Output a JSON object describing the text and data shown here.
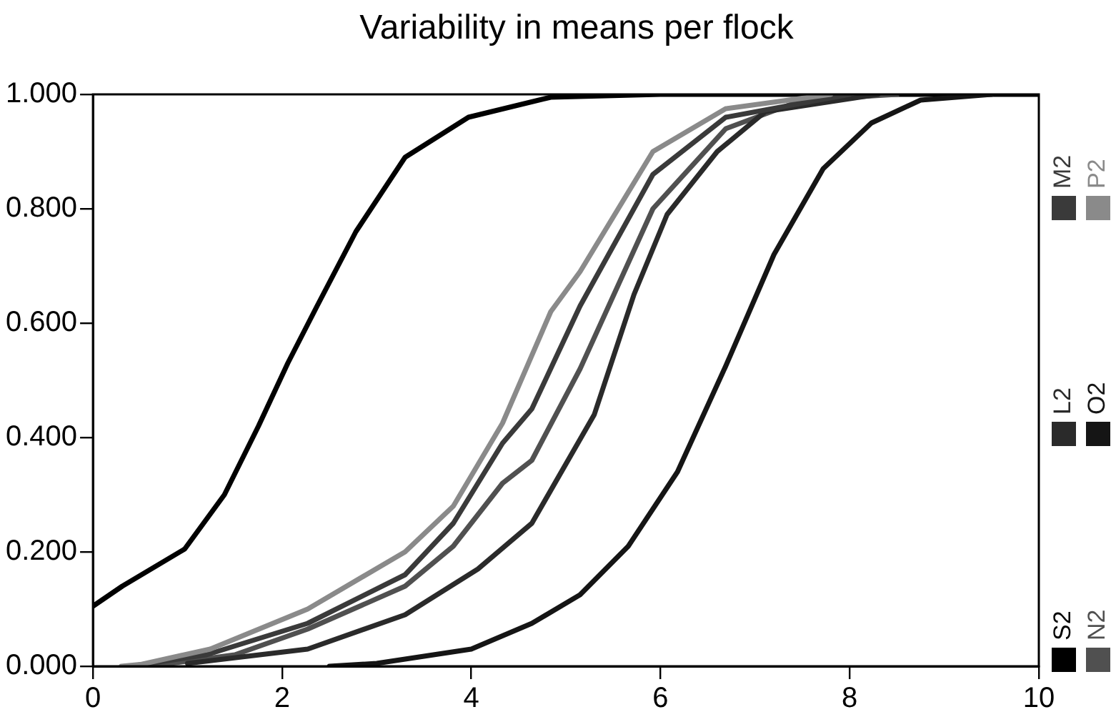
{
  "chart_data": {
    "type": "line",
    "title": "Variability in means per flock",
    "xlim": [
      0,
      10
    ],
    "xticks": [
      0,
      2,
      4,
      6,
      8,
      10
    ],
    "ylim": [
      0,
      1
    ],
    "yticks": [
      {
        "value": 0,
        "label": "0.000"
      },
      {
        "value": 0.2,
        "label": "0.200"
      },
      {
        "value": 0.4,
        "label": "0.400"
      },
      {
        "value": 0.6,
        "label": "0.600"
      },
      {
        "value": 0.8,
        "label": "0.800"
      },
      {
        "value": 1,
        "label": "1.000"
      }
    ],
    "grid": false,
    "legend": "right",
    "marker": "none",
    "line_style": "solid",
    "series": [
      {
        "name": "S2",
        "color": "#000000",
        "x": [
          0,
          0.31,
          0.97,
          1.39,
          1.75,
          2.06,
          2.37,
          2.78,
          3.3,
          3.97,
          4.84,
          6,
          10
        ],
        "values": [
          0.105,
          0.14,
          0.205,
          0.3,
          0.42,
          0.53,
          0.63,
          0.76,
          0.89,
          0.96,
          0.995,
          1,
          1
        ]
      },
      {
        "name": "N2",
        "color": "#505050",
        "x": [
          0.6,
          1.5,
          2.27,
          3.3,
          3.81,
          4.33,
          4.64,
          5.15,
          5.92,
          6.69,
          7.5,
          8.5
        ],
        "values": [
          0,
          0.02,
          0.065,
          0.14,
          0.21,
          0.32,
          0.36,
          0.52,
          0.8,
          0.94,
          0.99,
          1
        ]
      },
      {
        "name": "L2",
        "color": "#2a2a2a",
        "x": [
          1,
          2.27,
          3.3,
          4.07,
          4.64,
          5.3,
          5.72,
          6.07,
          6.6,
          7.11,
          8.3
        ],
        "values": [
          0.005,
          0.03,
          0.09,
          0.17,
          0.25,
          0.44,
          0.65,
          0.79,
          0.9,
          0.97,
          1
        ]
      },
      {
        "name": "O2",
        "color": "#151515",
        "x": [
          2.5,
          3,
          4,
          4.64,
          5.15,
          5.66,
          6.18,
          6.69,
          7.2,
          7.72,
          8.23,
          8.75,
          9.5
        ],
        "values": [
          0,
          0.005,
          0.03,
          0.075,
          0.125,
          0.21,
          0.34,
          0.525,
          0.72,
          0.87,
          0.95,
          0.99,
          1
        ]
      },
      {
        "name": "M2",
        "color": "#3a3a3a",
        "x": [
          0.4,
          1.2,
          2.27,
          3.3,
          3.81,
          4.33,
          4.64,
          5.15,
          5.92,
          6.69,
          8
        ],
        "values": [
          0,
          0.02,
          0.075,
          0.16,
          0.25,
          0.39,
          0.45,
          0.63,
          0.86,
          0.96,
          1
        ]
      },
      {
        "name": "P2",
        "color": "#8a8a8a",
        "x": [
          0.3,
          0.5,
          1.24,
          2.27,
          3.3,
          3.81,
          4.33,
          4.84,
          5.15,
          5.92,
          6.69,
          7.8
        ],
        "values": [
          0,
          0.003,
          0.03,
          0.1,
          0.2,
          0.28,
          0.425,
          0.62,
          0.69,
          0.9,
          0.975,
          1
        ]
      }
    ]
  }
}
